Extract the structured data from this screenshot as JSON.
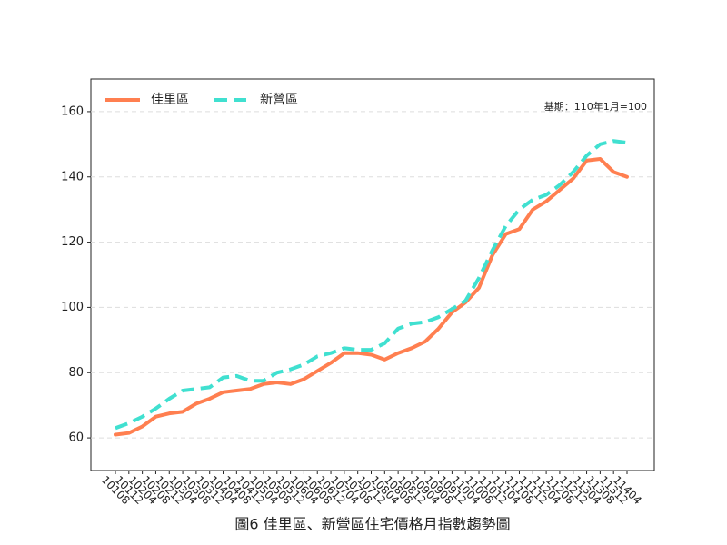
{
  "chart_data": {
    "type": "line",
    "title": "圖6 佳里區、新營區住宅價格月指數趨勢圖",
    "annotation": "基期：110年1月=100",
    "categories": [
      "10108",
      "10112",
      "10204",
      "10208",
      "10212",
      "10304",
      "10308",
      "10312",
      "10404",
      "10408",
      "10412",
      "10504",
      "10508",
      "10512",
      "10604",
      "10608",
      "10612",
      "10704",
      "10708",
      "10712",
      "10804",
      "10808",
      "10812",
      "10904",
      "10908",
      "10912",
      "11004",
      "11008",
      "11012",
      "11104",
      "11108",
      "11112",
      "11204",
      "11208",
      "11212",
      "11304",
      "11308",
      "11312",
      "11404"
    ],
    "series": [
      {
        "name": "佳里區",
        "color": "#ff7f50",
        "dash": false,
        "values": [
          61,
          61.5,
          63.5,
          66.5,
          67.5,
          68,
          70.5,
          72,
          74,
          74.5,
          75,
          76.5,
          77,
          76.5,
          78,
          80.5,
          83,
          86,
          86,
          85.5,
          84,
          86,
          87.5,
          89.5,
          93.5,
          98.5,
          101.5,
          106,
          116,
          122.5,
          124,
          130,
          132.5,
          136,
          139.5,
          145,
          145.5,
          141.5,
          140
        ]
      },
      {
        "name": "新營區",
        "color": "#40e0d0",
        "dash": true,
        "values": [
          63,
          64.5,
          66.5,
          69,
          72,
          74.5,
          75,
          75.5,
          78.5,
          79,
          77.5,
          77.5,
          80,
          81,
          82.5,
          85,
          86,
          87.5,
          87,
          87,
          89,
          93.5,
          95,
          95.5,
          97,
          99.5,
          102,
          109,
          117.5,
          125,
          130,
          133,
          134.5,
          137.5,
          141.5,
          146.5,
          150,
          151,
          150.5
        ]
      }
    ],
    "ylim": [
      50,
      170
    ],
    "yticks": [
      60,
      80,
      100,
      120,
      140,
      160
    ],
    "grid": true,
    "legend": "upper left"
  }
}
